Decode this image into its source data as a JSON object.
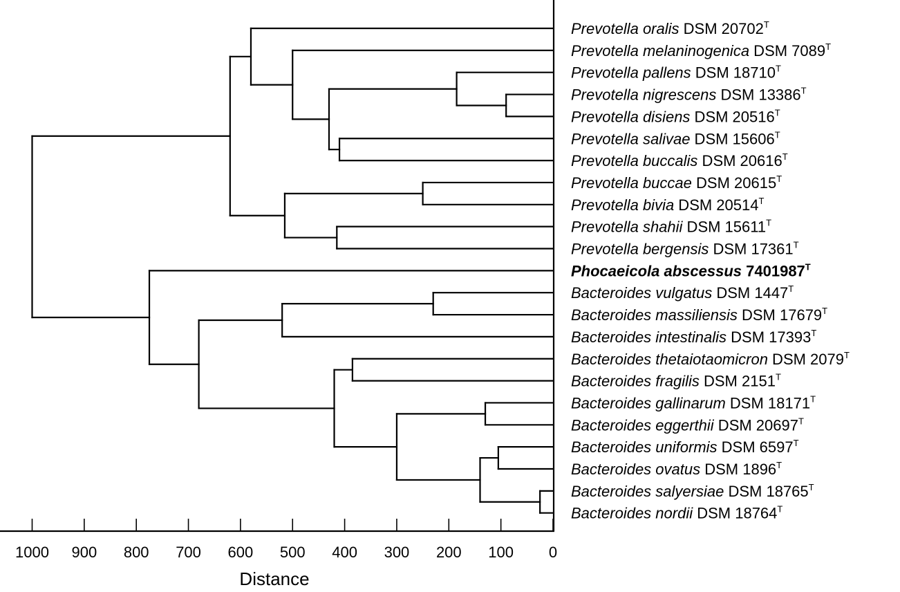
{
  "chart_data": {
    "type": "dendrogram",
    "xlabel": "Distance",
    "xlim": [
      1000,
      0
    ],
    "x_ticks": [
      "1000",
      "900",
      "800",
      "700",
      "600",
      "500",
      "400",
      "300",
      "200",
      "100",
      "0"
    ],
    "x_tick_values": [
      1000,
      900,
      800,
      700,
      600,
      500,
      400,
      300,
      200,
      100,
      0
    ],
    "leaves": [
      {
        "id": "oralis",
        "species": "Prevotella oralis",
        "strain": "DSM 20702",
        "type_strain_mark": "T",
        "highlight": false
      },
      {
        "id": "melaninogenica",
        "species": "Prevotella melaninogenica",
        "strain": "DSM 7089",
        "type_strain_mark": "T",
        "highlight": false
      },
      {
        "id": "pallens",
        "species": "Prevotella pallens",
        "strain": "DSM 18710",
        "type_strain_mark": "T",
        "highlight": false
      },
      {
        "id": "nigrescens",
        "species": "Prevotella nigrescens",
        "strain": "DSM 13386",
        "type_strain_mark": "T",
        "highlight": false
      },
      {
        "id": "disiens",
        "species": "Prevotella disiens",
        "strain": "DSM 20516",
        "type_strain_mark": "T",
        "highlight": false
      },
      {
        "id": "salivae",
        "species": "Prevotella salivae",
        "strain": "DSM 15606",
        "type_strain_mark": "T",
        "highlight": false
      },
      {
        "id": "buccalis",
        "species": "Prevotella buccalis",
        "strain": "DSM 20616",
        "type_strain_mark": "T",
        "highlight": false
      },
      {
        "id": "buccae",
        "species": "Prevotella buccae",
        "strain": "DSM 20615",
        "type_strain_mark": "T",
        "highlight": false
      },
      {
        "id": "bivia",
        "species": "Prevotella bivia",
        "strain": "DSM 20514",
        "type_strain_mark": "T",
        "highlight": false
      },
      {
        "id": "shahii",
        "species": "Prevotella shahii",
        "strain": "DSM 15611",
        "type_strain_mark": "T",
        "highlight": false
      },
      {
        "id": "bergensis",
        "species": "Prevotella bergensis",
        "strain": "DSM 17361",
        "type_strain_mark": "T",
        "highlight": false
      },
      {
        "id": "phocaeicola",
        "species": "Phocaeicola abscessus",
        "strain": "7401987",
        "type_strain_mark": "T",
        "highlight": true
      },
      {
        "id": "vulgatus",
        "species": "Bacteroides vulgatus",
        "strain": "DSM 1447",
        "type_strain_mark": "T",
        "highlight": false
      },
      {
        "id": "massiliensis",
        "species": "Bacteroides massiliensis",
        "strain": "DSM 17679",
        "type_strain_mark": "T",
        "highlight": false
      },
      {
        "id": "intestinalis",
        "species": "Bacteroides intestinalis",
        "strain": "DSM 17393",
        "type_strain_mark": "T",
        "highlight": false
      },
      {
        "id": "thetaiotaomicron",
        "species": "Bacteroides thetaiotaomicron",
        "strain": "DSM 2079",
        "type_strain_mark": "T",
        "highlight": false
      },
      {
        "id": "fragilis",
        "species": "Bacteroides fragilis",
        "strain": "DSM 2151",
        "type_strain_mark": "T",
        "highlight": false
      },
      {
        "id": "gallinarum",
        "species": "Bacteroides gallinarum",
        "strain": "DSM 18171",
        "type_strain_mark": "T",
        "highlight": false
      },
      {
        "id": "eggerthii",
        "species": "Bacteroides eggerthii",
        "strain": "DSM 20697",
        "type_strain_mark": "T",
        "highlight": false
      },
      {
        "id": "uniformis",
        "species": "Bacteroides uniformis",
        "strain": "DSM 6597",
        "type_strain_mark": "T",
        "highlight": false
      },
      {
        "id": "ovatus",
        "species": "Bacteroides ovatus",
        "strain": "DSM 1896",
        "type_strain_mark": "T",
        "highlight": false
      },
      {
        "id": "salyersiae",
        "species": "Bacteroides salyersiae",
        "strain": "DSM 18765",
        "type_strain_mark": "T",
        "highlight": false
      },
      {
        "id": "nordii",
        "species": "Bacteroides nordii",
        "strain": "DSM 18764",
        "type_strain_mark": "T",
        "highlight": false
      }
    ],
    "tree": {
      "distance": 1000,
      "children": [
        {
          "distance": 620,
          "children": [
            {
              "distance": 580,
              "children": [
                {
                  "leaf": "oralis"
                },
                {
                  "distance": 500,
                  "children": [
                    {
                      "leaf": "melaninogenica"
                    },
                    {
                      "distance": 430,
                      "children": [
                        {
                          "distance": 185,
                          "children": [
                            {
                              "leaf": "pallens"
                            },
                            {
                              "distance": 90,
                              "children": [
                                {
                                  "leaf": "nigrescens"
                                },
                                {
                                  "leaf": "disiens"
                                }
                              ]
                            }
                          ]
                        },
                        {
                          "distance": 410,
                          "children": [
                            {
                              "leaf": "salivae"
                            },
                            {
                              "leaf": "buccalis"
                            }
                          ]
                        }
                      ]
                    }
                  ]
                }
              ]
            },
            {
              "distance": 515,
              "children": [
                {
                  "distance": 250,
                  "children": [
                    {
                      "leaf": "buccae"
                    },
                    {
                      "leaf": "bivia"
                    }
                  ]
                },
                {
                  "distance": 415,
                  "children": [
                    {
                      "leaf": "shahii"
                    },
                    {
                      "leaf": "bergensis"
                    }
                  ]
                }
              ]
            }
          ]
        },
        {
          "distance": 775,
          "children": [
            {
              "leaf": "phocaeicola"
            },
            {
              "distance": 680,
              "children": [
                {
                  "distance": 520,
                  "children": [
                    {
                      "distance": 230,
                      "children": [
                        {
                          "leaf": "vulgatus"
                        },
                        {
                          "leaf": "massiliensis"
                        }
                      ]
                    },
                    {
                      "leaf": "intestinalis"
                    }
                  ]
                },
                {
                  "distance": 420,
                  "children": [
                    {
                      "distance": 385,
                      "children": [
                        {
                          "leaf": "thetaiotaomicron"
                        },
                        {
                          "leaf": "fragilis"
                        }
                      ]
                    },
                    {
                      "distance": 300,
                      "children": [
                        {
                          "distance": 130,
                          "children": [
                            {
                              "leaf": "gallinarum"
                            },
                            {
                              "leaf": "eggerthii"
                            }
                          ]
                        },
                        {
                          "distance": 140,
                          "children": [
                            {
                              "distance": 105,
                              "children": [
                                {
                                  "leaf": "uniformis"
                                },
                                {
                                  "leaf": "ovatus"
                                }
                              ]
                            },
                            {
                              "distance": 25,
                              "children": [
                                {
                                  "leaf": "salyersiae"
                                },
                                {
                                  "leaf": "nordii"
                                }
                              ]
                            }
                          ]
                        }
                      ]
                    }
                  ]
                }
              ]
            }
          ]
        }
      ]
    }
  }
}
